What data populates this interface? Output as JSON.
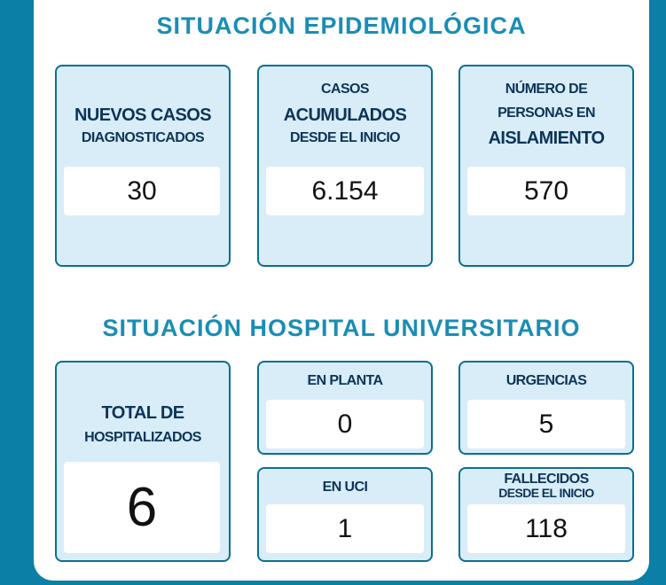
{
  "title": "SITUACIÓN EPIDEMIOLÓGICA",
  "epidemiology": [
    {
      "label": [
        "NUEVOS CASOS",
        "DIAGNOSTICADOS"
      ],
      "value": "30"
    },
    {
      "label": [
        "CASOS",
        "ACUMULADOS",
        "DESDE EL INICIO"
      ],
      "value": "6.154"
    },
    {
      "label": [
        "NÚMERO DE",
        "PERSONAS EN",
        "AISLAMIENTO"
      ],
      "value": "570"
    }
  ],
  "hospital_title": "SITUACIÓN HOSPITAL UNIVERSITARIO",
  "hospital": [
    {
      "label": [
        "TOTAL DE",
        "HOSPITALIZADOS"
      ],
      "value": "6"
    },
    {
      "label": [
        "EN PLANTA"
      ],
      "value": "0"
    },
    {
      "label": [
        "URGENCIAS"
      ],
      "value": "5"
    },
    {
      "label": [
        "EN UCI"
      ],
      "value": "1"
    },
    {
      "label": [
        "FALLECIDOS",
        "DESDE EL INICIO"
      ],
      "value": "118"
    }
  ]
}
